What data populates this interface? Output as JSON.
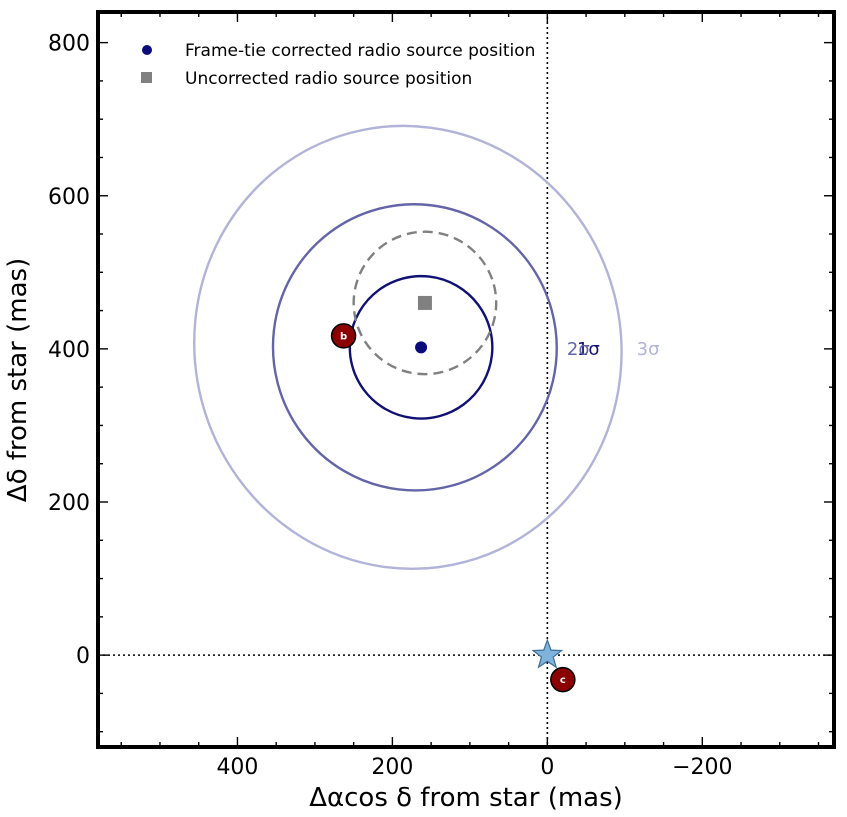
{
  "chart_data": {
    "type": "scatter",
    "xlabel": "Δαcos δ from star (mas)",
    "ylabel": "Δδ from star (mas)",
    "xlim": [
      580,
      -370
    ],
    "ylim": [
      -120,
      840
    ],
    "x_ticks": [
      400,
      200,
      0,
      -200
    ],
    "x_tick_labels": [
      "400",
      "200",
      "0",
      "−200"
    ],
    "y_ticks": [
      0,
      200,
      400,
      600,
      800
    ],
    "y_tick_labels": [
      "0",
      "200",
      "400",
      "600",
      "800"
    ],
    "reference_lines": {
      "x": 0,
      "y": 0,
      "style": "dotted"
    },
    "legend": {
      "placement": "top-left",
      "entries": [
        {
          "label": "Frame-tie corrected radio source position",
          "marker": "circle",
          "color": "#0b0b7a"
        },
        {
          "label": "Uncorrected radio source position",
          "marker": "square",
          "color": "#808080"
        }
      ]
    },
    "points": {
      "corrected": {
        "x": 163,
        "y": 402,
        "color": "#0b0b7a"
      },
      "uncorrected": {
        "x": 158,
        "y": 460,
        "color": "#808080"
      },
      "star": {
        "x": 0,
        "y": 0,
        "color": "#7fb3d9"
      },
      "planets": [
        {
          "label": "b",
          "x": 263,
          "y": 417,
          "color": "#8b0000"
        },
        {
          "label": "c",
          "x": -20,
          "y": -32,
          "color": "#8b0000"
        }
      ]
    },
    "contours": [
      {
        "label": "1σ",
        "cx": 163,
        "cy": 402,
        "rx": 92,
        "ry": 93,
        "angle": 15,
        "color": "#101075",
        "label_x": -53,
        "label_y": 400
      },
      {
        "label": "2σ",
        "cx": 171,
        "cy": 402,
        "rx": 183,
        "ry": 187,
        "angle": 15,
        "color": "#6465a8",
        "label_x": -40,
        "label_y": 400
      },
      {
        "label": "3σ",
        "cx": 180,
        "cy": 402,
        "rx": 275,
        "ry": 290,
        "angle": 15,
        "color": "#b2b3d8",
        "label_x": -130,
        "label_y": 400
      }
    ],
    "uncorrected_contour": {
      "cx": 158,
      "cy": 460,
      "rx": 92,
      "ry": 93,
      "angle": 15,
      "color": "#808080",
      "style": "dashed"
    }
  }
}
